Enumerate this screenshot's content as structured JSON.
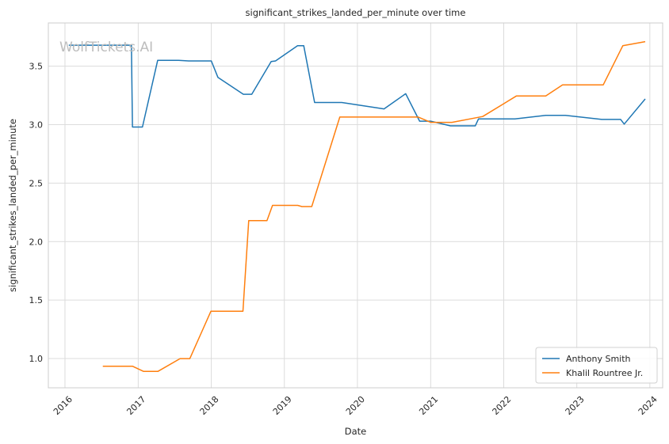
{
  "chart_data": {
    "type": "line",
    "title": "significant_strikes_landed_per_minute over time",
    "xlabel": "Date",
    "ylabel": "significant_strikes_landed_per_minute",
    "watermark": "WolfTickets.AI",
    "xlim": [
      "2015-10-10",
      "2024-03-05"
    ],
    "ylim": [
      0.75,
      3.87
    ],
    "x_ticks": [
      "2016",
      "2017",
      "2018",
      "2019",
      "2020",
      "2021",
      "2022",
      "2023",
      "2024"
    ],
    "y_ticks": [
      "1.0",
      "1.5",
      "2.0",
      "2.5",
      "3.0",
      "3.5"
    ],
    "grid": true,
    "legend_position": "bottom-right",
    "series": [
      {
        "name": "Anthony Smith",
        "color": "#1f77b4",
        "points": [
          [
            "2016-01-20",
            3.68
          ],
          [
            "2016-11-28",
            3.68
          ],
          [
            "2016-12-03",
            2.98
          ],
          [
            "2017-01-22",
            2.98
          ],
          [
            "2017-04-08",
            3.55
          ],
          [
            "2017-07-22",
            3.55
          ],
          [
            "2017-09-10",
            3.545
          ],
          [
            "2018-01-01",
            3.545
          ],
          [
            "2018-02-03",
            3.405
          ],
          [
            "2018-06-10",
            3.26
          ],
          [
            "2018-07-22",
            3.26
          ],
          [
            "2018-10-27",
            3.54
          ],
          [
            "2018-11-18",
            3.545
          ],
          [
            "2019-03-08",
            3.675
          ],
          [
            "2019-04-08",
            3.675
          ],
          [
            "2019-06-01",
            3.19
          ],
          [
            "2019-10-15",
            3.19
          ],
          [
            "2020-05-13",
            3.135
          ],
          [
            "2020-08-29",
            3.265
          ],
          [
            "2020-11-07",
            3.03
          ],
          [
            "2021-01-01",
            3.03
          ],
          [
            "2021-04-10",
            2.99
          ],
          [
            "2021-08-12",
            2.99
          ],
          [
            "2021-08-28",
            3.05
          ],
          [
            "2022-02-26",
            3.05
          ],
          [
            "2022-07-30",
            3.08
          ],
          [
            "2022-11-05",
            3.08
          ],
          [
            "2023-05-06",
            3.045
          ],
          [
            "2023-08-08",
            3.045
          ],
          [
            "2023-08-26",
            3.005
          ],
          [
            "2023-12-09",
            3.22
          ]
        ]
      },
      {
        "name": "Khalil Rountree Jr.",
        "color": "#ff7f0e",
        "points": [
          [
            "2016-07-08",
            0.935
          ],
          [
            "2016-12-03",
            0.935
          ],
          [
            "2017-01-28",
            0.89
          ],
          [
            "2017-04-09",
            0.89
          ],
          [
            "2017-07-29",
            1.0
          ],
          [
            "2017-09-16",
            1.0
          ],
          [
            "2017-12-30",
            1.405
          ],
          [
            "2018-06-08",
            1.405
          ],
          [
            "2018-07-07",
            2.18
          ],
          [
            "2018-10-06",
            2.18
          ],
          [
            "2018-11-03",
            2.31
          ],
          [
            "2019-03-09",
            2.31
          ],
          [
            "2019-03-30",
            2.3
          ],
          [
            "2019-05-18",
            2.3
          ],
          [
            "2019-10-05",
            3.065
          ],
          [
            "2020-10-31",
            3.065
          ],
          [
            "2021-01-01",
            3.02
          ],
          [
            "2021-04-17",
            3.02
          ],
          [
            "2021-09-18",
            3.07
          ],
          [
            "2022-03-05",
            3.245
          ],
          [
            "2022-07-30",
            3.245
          ],
          [
            "2022-10-22",
            3.34
          ],
          [
            "2023-05-13",
            3.34
          ],
          [
            "2023-08-19",
            3.675
          ],
          [
            "2023-12-09",
            3.71
          ]
        ]
      }
    ]
  }
}
